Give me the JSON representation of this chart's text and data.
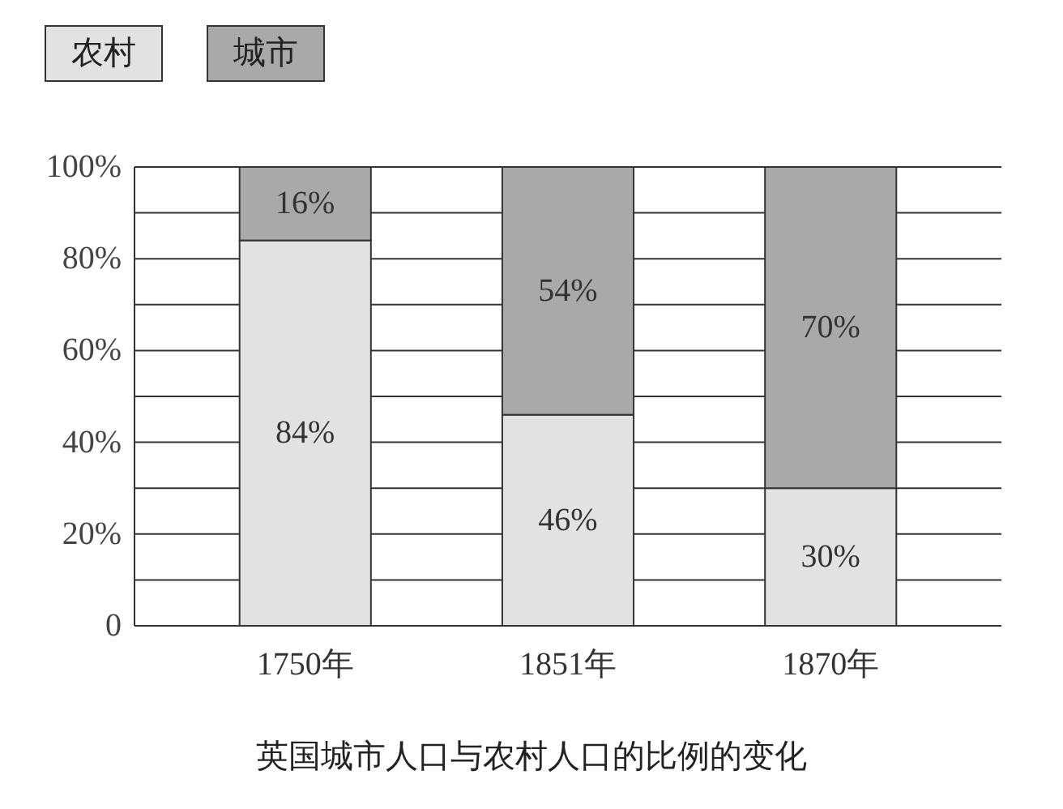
{
  "chart_data": {
    "type": "bar",
    "title": "英国城市人口与农村人口的比例的变化",
    "categories": [
      "1750年",
      "1851年",
      "1870年"
    ],
    "stacked": true,
    "series": [
      {
        "name": "农村",
        "color": "#e2e2e2",
        "values": [
          84,
          46,
          30
        ],
        "value_labels": [
          "84%",
          "46%",
          "30%"
        ]
      },
      {
        "name": "城市",
        "color": "#a9a9a9",
        "values": [
          16,
          54,
          70
        ],
        "value_labels": [
          "16%",
          "54%",
          "70%"
        ]
      }
    ],
    "ylim": [
      0,
      100
    ],
    "yticks": [
      0,
      {
        "value": 10,
        "label": null
      },
      {
        "value": 20,
        "label": "20%"
      },
      {
        "value": 30,
        "label": null
      },
      {
        "value": 40,
        "label": "40%"
      },
      {
        "value": 50,
        "label": null
      },
      {
        "value": 60,
        "label": "60%"
      },
      {
        "value": 70,
        "label": null
      },
      {
        "value": 80,
        "label": "80%"
      },
      {
        "value": 90,
        "label": null
      },
      {
        "value": 100,
        "label": "100%"
      }
    ],
    "grid": "y",
    "legend": "top left"
  }
}
